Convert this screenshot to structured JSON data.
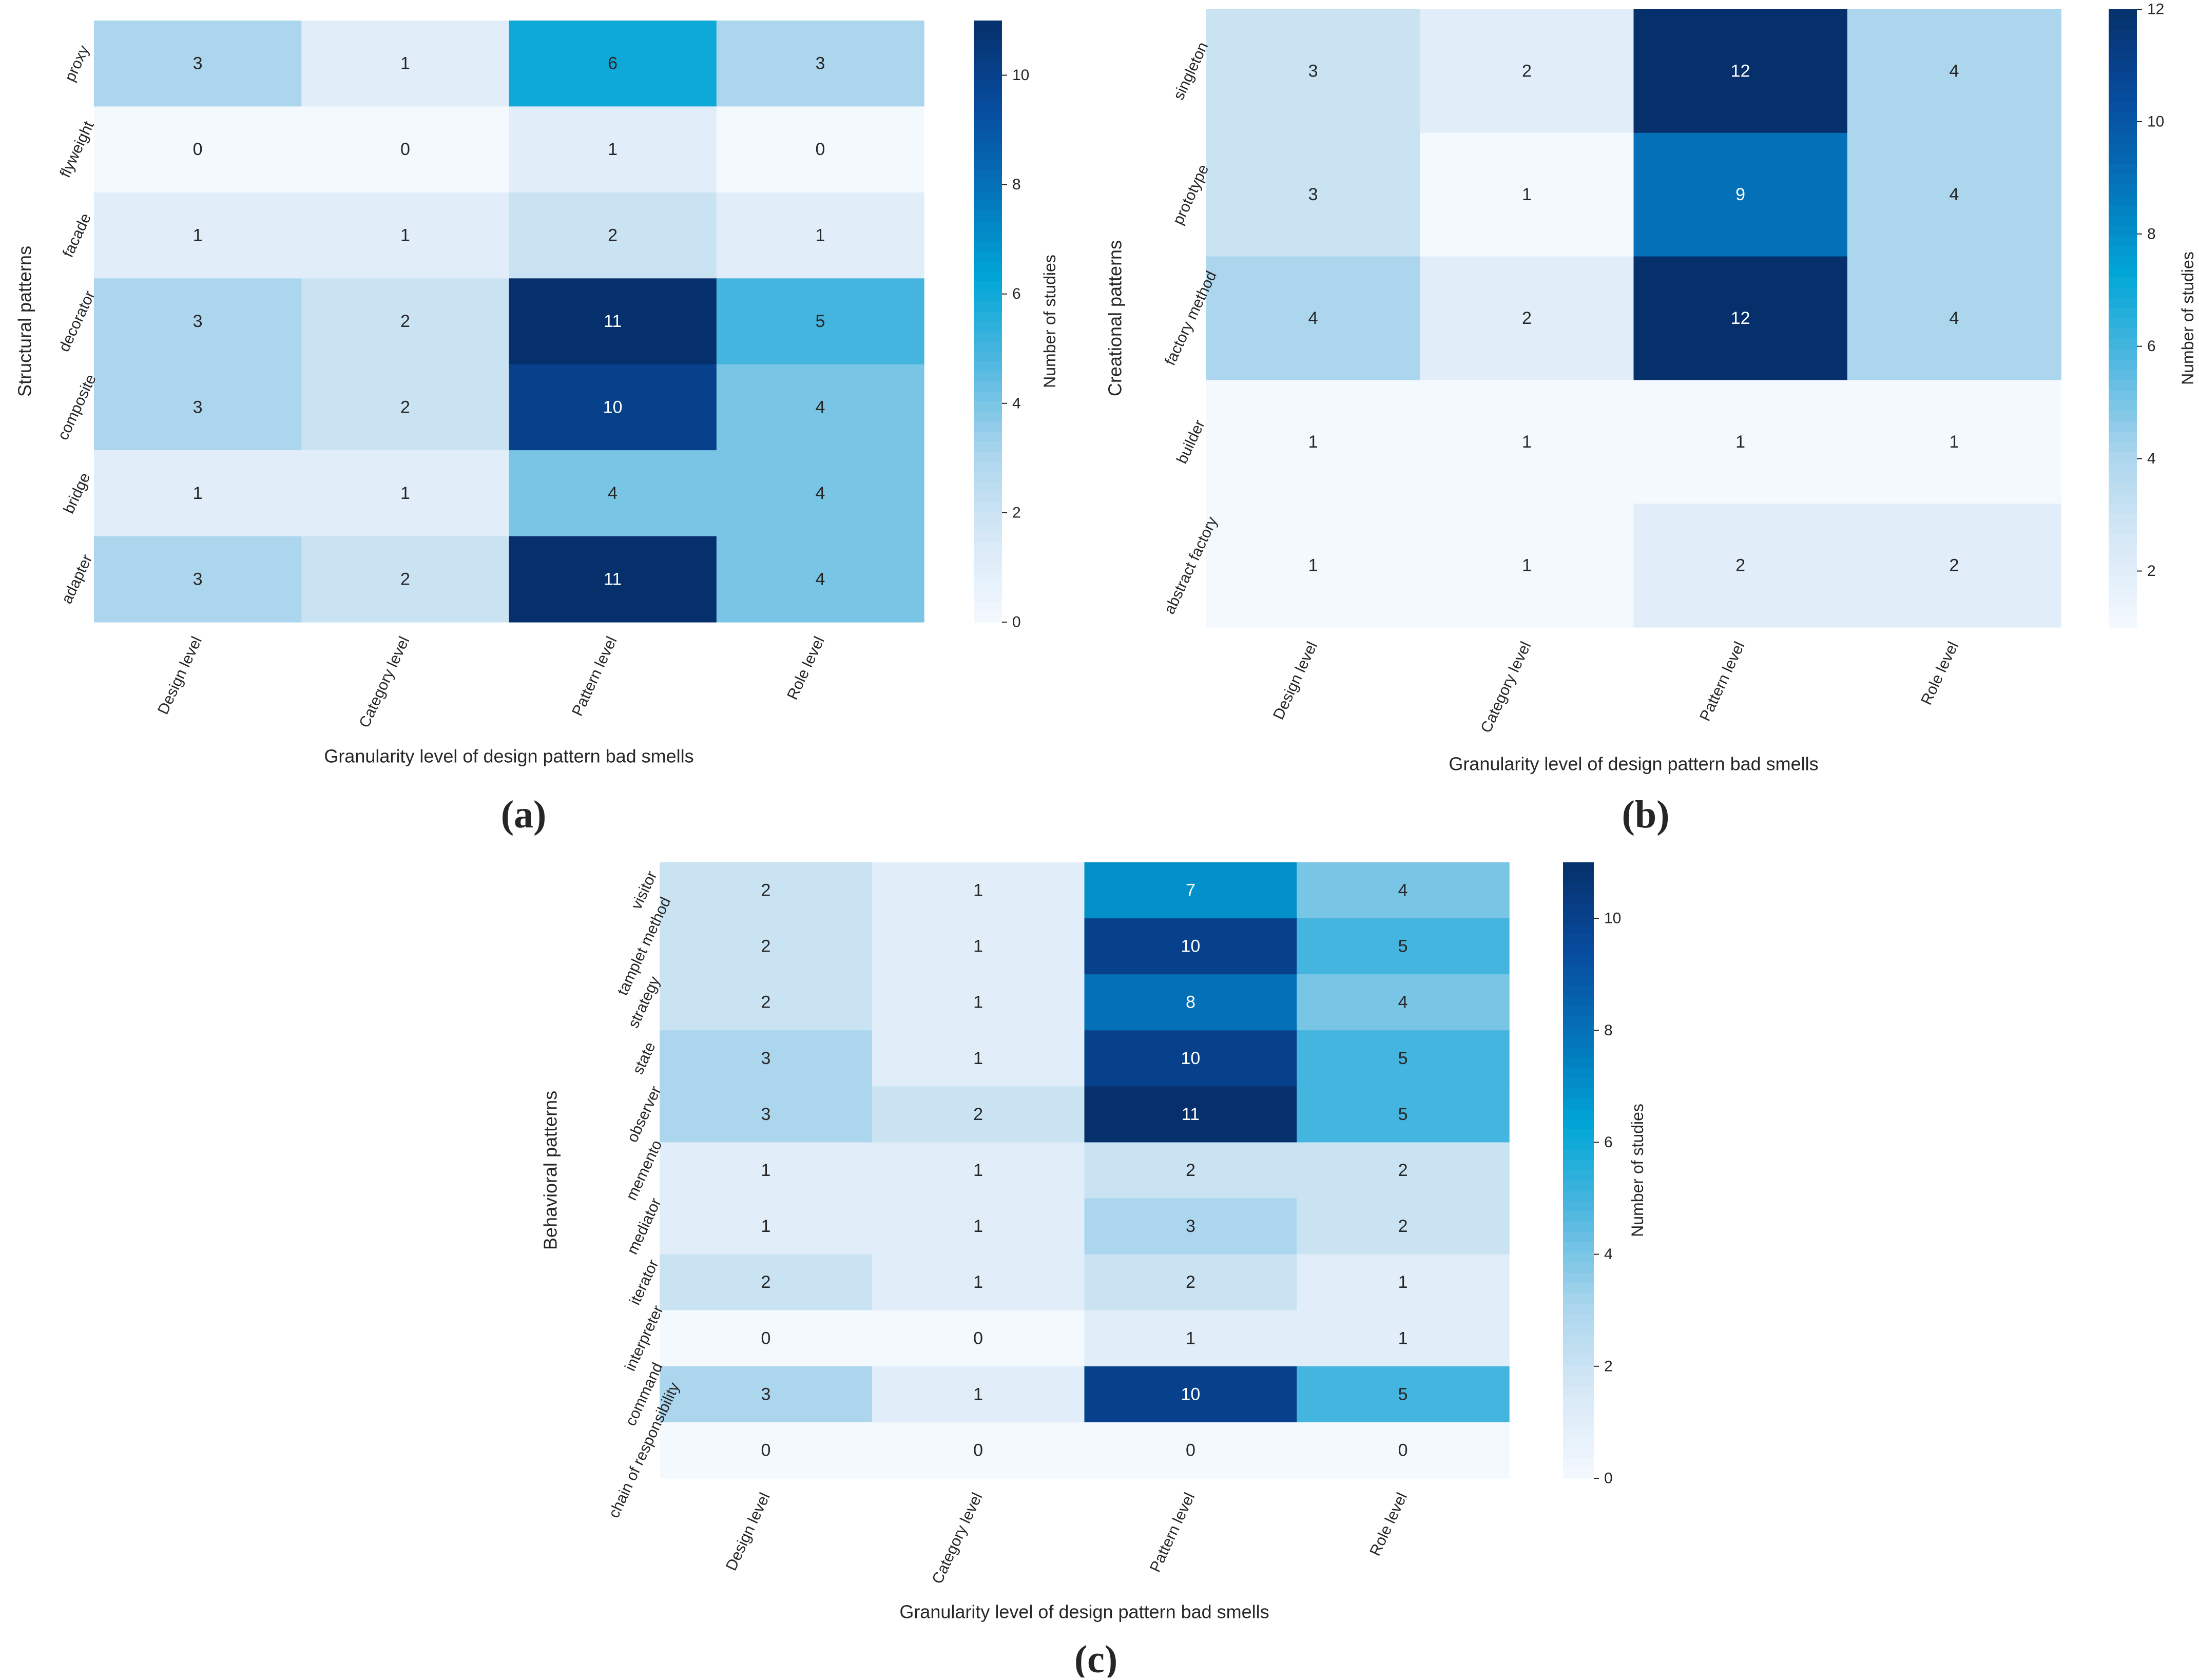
{
  "figure": {
    "panel_labels": [
      "(a)",
      "(b)",
      "(c)"
    ]
  },
  "chart_data": [
    {
      "type": "heatmap",
      "panel": "(a)",
      "ylabel": "Structural patterns",
      "xlabel": "Granularity level of design pattern bad smells",
      "colorbar_label": "Number of studies",
      "colorbar_range": [
        0,
        11
      ],
      "colorbar_ticks": [
        0,
        2,
        4,
        6,
        8,
        10
      ],
      "colormap": "Blues",
      "categories": [
        "Design level",
        "Category level",
        "Pattern level",
        "Role level"
      ],
      "rows": [
        "proxy",
        "flyweight",
        "facade",
        "decorator",
        "composite",
        "bridge",
        "adapter"
      ],
      "values": [
        [
          3,
          1,
          6,
          3
        ],
        [
          0,
          0,
          1,
          0
        ],
        [
          1,
          1,
          2,
          1
        ],
        [
          3,
          2,
          11,
          5
        ],
        [
          3,
          2,
          10,
          4
        ],
        [
          1,
          1,
          4,
          4
        ],
        [
          3,
          2,
          11,
          4
        ]
      ]
    },
    {
      "type": "heatmap",
      "panel": "(b)",
      "ylabel": "Creational patterns",
      "xlabel": "Granularity level of design pattern bad smells",
      "colorbar_label": "Number of studies",
      "colorbar_range": [
        1,
        12
      ],
      "colorbar_ticks": [
        2,
        4,
        6,
        8,
        10,
        12
      ],
      "colormap": "Blues",
      "categories": [
        "Design level",
        "Category level",
        "Pattern level",
        "Role level"
      ],
      "rows": [
        "singleton",
        "prototype",
        "factory method",
        "builder",
        "abstract factory"
      ],
      "values": [
        [
          3,
          2,
          12,
          4
        ],
        [
          3,
          1,
          9,
          4
        ],
        [
          4,
          2,
          12,
          4
        ],
        [
          1,
          1,
          1,
          1
        ],
        [
          1,
          1,
          2,
          2
        ]
      ]
    },
    {
      "type": "heatmap",
      "panel": "(c)",
      "ylabel": "Behavioral patterns",
      "xlabel": "Granularity level of design pattern bad smells",
      "colorbar_label": "Number of studies",
      "colorbar_range": [
        0,
        11
      ],
      "colorbar_ticks": [
        0,
        2,
        4,
        6,
        8,
        10
      ],
      "colormap": "Blues",
      "categories": [
        "Design level",
        "Category level",
        "Pattern level",
        "Role level"
      ],
      "rows": [
        "visitor",
        "tamplet method",
        "strategy",
        "state",
        "observer",
        "memento",
        "mediator",
        "iterator",
        "interpreter",
        "command",
        "chain of responsibility"
      ],
      "values": [
        [
          2,
          1,
          7,
          4
        ],
        [
          2,
          1,
          10,
          5
        ],
        [
          2,
          1,
          8,
          4
        ],
        [
          3,
          1,
          10,
          5
        ],
        [
          3,
          2,
          11,
          5
        ],
        [
          1,
          1,
          2,
          2
        ],
        [
          1,
          1,
          3,
          2
        ],
        [
          2,
          1,
          2,
          1
        ],
        [
          0,
          0,
          1,
          1
        ],
        [
          3,
          1,
          10,
          5
        ],
        [
          0,
          0,
          0,
          0
        ]
      ]
    }
  ]
}
